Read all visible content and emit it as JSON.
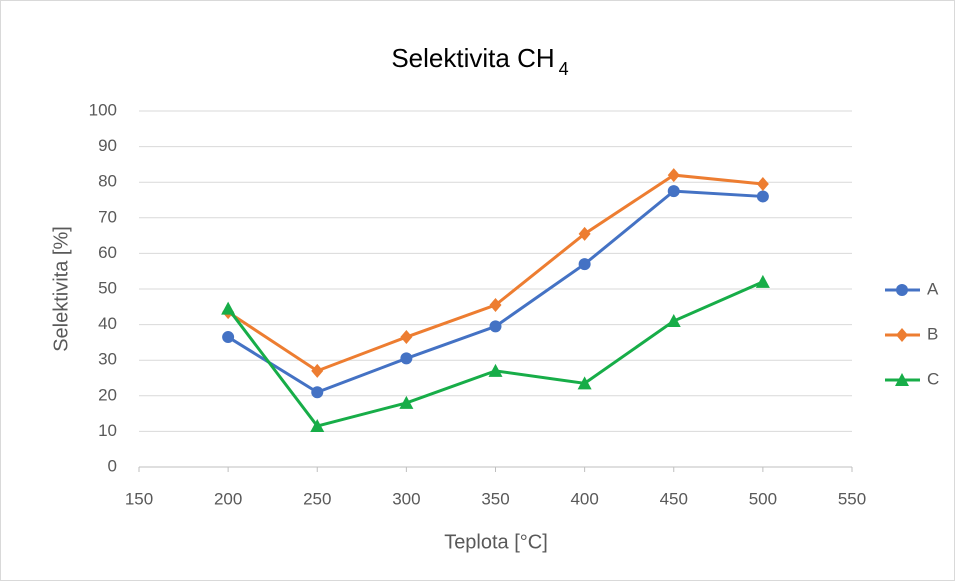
{
  "chart_data": {
    "type": "line",
    "title": "Selektivita CH",
    "title_subscript": "4",
    "x_label": "Teplota [°C]",
    "y_label": "Selektivita [%]",
    "x": [
      200,
      250,
      300,
      350,
      400,
      450,
      500
    ],
    "series": [
      {
        "name": "A",
        "color": "#4472c4",
        "marker": "circle",
        "values": [
          36.5,
          21,
          30.5,
          39.5,
          57,
          77.5,
          76
        ]
      },
      {
        "name": "B",
        "color": "#ed7d31",
        "marker": "diamond",
        "values": [
          43.5,
          27,
          36.5,
          45.5,
          65.5,
          82,
          79.5
        ]
      },
      {
        "name": "C",
        "color": "#17ad48",
        "marker": "triangle",
        "values": [
          44.5,
          11.5,
          18,
          27,
          23.5,
          41,
          52
        ]
      }
    ],
    "xlim": [
      150,
      550
    ],
    "xticks": [
      150,
      200,
      250,
      300,
      350,
      400,
      450,
      500,
      550
    ],
    "ylim": [
      0,
      100
    ],
    "yticks": [
      0,
      10,
      20,
      30,
      40,
      50,
      60,
      70,
      80,
      90,
      100
    ],
    "grid": true,
    "legend": "right"
  }
}
